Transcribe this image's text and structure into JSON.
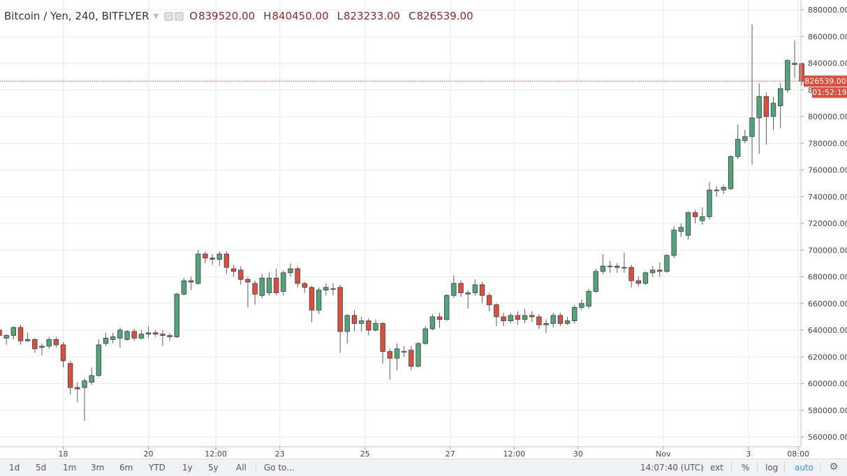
{
  "legend": {
    "symbol": "Bitcoin / Yen, 240, BITFLYER",
    "open_label": "O",
    "open": "839520.00",
    "high_label": "H",
    "high": "840450.00",
    "low_label": "L",
    "low": "823233.00",
    "close_label": "C",
    "close": "826539.00",
    "icons": [
      "eye-icon",
      "settings-icon"
    ]
  },
  "price_badge": "826539.00",
  "countdown_badge": "01:52:19",
  "colors": {
    "up": "#53a37c",
    "down": "#d9503f",
    "wick": "#5a5a5a",
    "grid": "#e8eaee",
    "price_line": "#d9503f"
  },
  "bottom_bar": {
    "timeframes": [
      "1d",
      "5d",
      "1m",
      "3m",
      "6m",
      "YTD",
      "1y",
      "5y",
      "All"
    ],
    "goto": "Go to...",
    "time": "14:07:40 (UTC)",
    "ext": "ext",
    "percent": "%",
    "log": "log",
    "auto": "auto"
  },
  "chart_data": {
    "type": "candlestick",
    "title": "Bitcoin / Yen, 240, BITFLYER",
    "ylim": [
      552000,
      885000
    ],
    "y_ticks": [
      560000,
      580000,
      600000,
      620000,
      640000,
      660000,
      680000,
      700000,
      720000,
      740000,
      760000,
      780000,
      800000,
      820000,
      840000,
      860000,
      880000
    ],
    "y_tick_labels": [
      "560000.00",
      "580000.00",
      "600000.00",
      "620000.00",
      "640000.00",
      "660000.00",
      "680000.00",
      "700000.00",
      "720000.00",
      "740000.00",
      "760000.00",
      "780000.00",
      "800000.00",
      "820000.00",
      "840000.00",
      "860000.00",
      "880000.00"
    ],
    "x_ticks": [
      {
        "label": "18",
        "bar": 9
      },
      {
        "label": "20",
        "bar": 21
      },
      {
        "label": "12:00",
        "bar": 30.5
      },
      {
        "label": "23",
        "bar": 39.5
      },
      {
        "label": "25",
        "bar": 51.5
      },
      {
        "label": "27",
        "bar": 63.5
      },
      {
        "label": "12:00",
        "bar": 72.5
      },
      {
        "label": "30",
        "bar": 81.5
      },
      {
        "label": "Nov",
        "bar": 93.5
      },
      {
        "label": "3",
        "bar": 105.5
      },
      {
        "label": "08:00",
        "bar": 112.5
      }
    ],
    "grid": true,
    "last_price": 826539,
    "candles": [
      [
        640000,
        636000,
        642000,
        633000
      ],
      [
        634000,
        636000,
        637000,
        629000
      ],
      [
        636000,
        642000,
        643000,
        633000
      ],
      [
        642000,
        632000,
        644000,
        629000
      ],
      [
        632000,
        633000,
        638000,
        631000
      ],
      [
        633000,
        626000,
        634000,
        623000
      ],
      [
        627000,
        628000,
        630000,
        621000
      ],
      [
        628000,
        633000,
        635000,
        626000
      ],
      [
        633000,
        629000,
        635000,
        627000
      ],
      [
        629000,
        617000,
        631000,
        612000
      ],
      [
        615000,
        597000,
        617000,
        592000
      ],
      [
        597000,
        596000,
        601000,
        586000
      ],
      [
        597000,
        602000,
        604000,
        572000
      ],
      [
        601000,
        606000,
        612000,
        599000
      ],
      [
        606000,
        629000,
        633000,
        605000
      ],
      [
        630000,
        634000,
        638000,
        628000
      ],
      [
        633000,
        635000,
        638000,
        630000
      ],
      [
        634000,
        640000,
        642000,
        627000
      ],
      [
        633000,
        639000,
        640000,
        632000
      ],
      [
        639000,
        634000,
        641000,
        632000
      ],
      [
        634000,
        637000,
        640000,
        633000
      ],
      [
        637000,
        638000,
        643000,
        634000
      ],
      [
        638000,
        637000,
        640000,
        635000
      ],
      [
        637000,
        636000,
        640000,
        628000
      ],
      [
        635000,
        636000,
        638000,
        632000
      ],
      [
        635000,
        667000,
        668000,
        634000
      ],
      [
        667000,
        677000,
        679000,
        666000
      ],
      [
        677000,
        676000,
        680000,
        670000
      ],
      [
        675000,
        697000,
        700000,
        674000
      ],
      [
        697000,
        694000,
        699000,
        690000
      ],
      [
        694000,
        693000,
        697000,
        689000
      ],
      [
        693000,
        697000,
        699000,
        688000
      ],
      [
        697000,
        687000,
        699000,
        682000
      ],
      [
        686000,
        684000,
        689000,
        680000
      ],
      [
        685000,
        678000,
        688000,
        674000
      ],
      [
        678000,
        676000,
        680000,
        657000
      ],
      [
        675000,
        667000,
        677000,
        659000
      ],
      [
        666000,
        679000,
        682000,
        664000
      ],
      [
        668000,
        679000,
        683000,
        666000
      ],
      [
        679000,
        668000,
        686000,
        666000
      ],
      [
        669000,
        683000,
        685000,
        666000
      ],
      [
        683000,
        686000,
        690000,
        680000
      ],
      [
        686000,
        675000,
        688000,
        672000
      ],
      [
        675000,
        672000,
        676000,
        668000
      ],
      [
        672000,
        655000,
        673000,
        646000
      ],
      [
        655000,
        670000,
        672000,
        652000
      ],
      [
        670000,
        672000,
        675000,
        666000
      ],
      [
        671000,
        671000,
        675000,
        666000
      ],
      [
        672000,
        639000,
        674000,
        623000
      ],
      [
        639000,
        651000,
        652000,
        630000
      ],
      [
        651000,
        645000,
        655000,
        639000
      ],
      [
        645000,
        647000,
        650000,
        639000
      ],
      [
        647000,
        640000,
        649000,
        636000
      ],
      [
        640000,
        645000,
        648000,
        639000
      ],
      [
        645000,
        624000,
        646000,
        615000
      ],
      [
        624000,
        619000,
        626000,
        603000
      ],
      [
        619000,
        626000,
        630000,
        610000
      ],
      [
        624000,
        624000,
        628000,
        620000
      ],
      [
        625000,
        613000,
        628000,
        610000
      ],
      [
        613000,
        630000,
        631000,
        612000
      ],
      [
        630000,
        641000,
        643000,
        629000
      ],
      [
        641000,
        650000,
        652000,
        640000
      ],
      [
        650000,
        648000,
        653000,
        642000
      ],
      [
        648000,
        666000,
        667000,
        647000
      ],
      [
        666000,
        675000,
        681000,
        664000
      ],
      [
        675000,
        668000,
        677000,
        665000
      ],
      [
        667000,
        668000,
        670000,
        656000
      ],
      [
        668000,
        674000,
        678000,
        666000
      ],
      [
        674000,
        666000,
        676000,
        660000
      ],
      [
        666000,
        659000,
        668000,
        654000
      ],
      [
        659000,
        650000,
        660000,
        643000
      ],
      [
        650000,
        647000,
        653000,
        643000
      ],
      [
        647000,
        651000,
        653000,
        645000
      ],
      [
        651000,
        648000,
        654000,
        644000
      ],
      [
        648000,
        651000,
        656000,
        645000
      ],
      [
        651000,
        650000,
        654000,
        646000
      ],
      [
        650000,
        644000,
        652000,
        641000
      ],
      [
        644000,
        645000,
        648000,
        638000
      ],
      [
        645000,
        651000,
        653000,
        642000
      ],
      [
        651000,
        645000,
        653000,
        643000
      ],
      [
        645000,
        647000,
        650000,
        644000
      ],
      [
        647000,
        657000,
        659000,
        645000
      ],
      [
        657000,
        660000,
        663000,
        655000
      ],
      [
        658000,
        669000,
        671000,
        656000
      ],
      [
        669000,
        684000,
        686000,
        668000
      ],
      [
        684000,
        688000,
        697000,
        682000
      ],
      [
        688000,
        688000,
        692000,
        683000
      ],
      [
        688000,
        687000,
        690000,
        683000
      ],
      [
        687000,
        687000,
        698000,
        683000
      ],
      [
        687000,
        677000,
        689000,
        672000
      ],
      [
        677000,
        675000,
        680000,
        673000
      ],
      [
        675000,
        683000,
        684000,
        674000
      ],
      [
        683000,
        685000,
        688000,
        680000
      ],
      [
        685000,
        684000,
        691000,
        680000
      ],
      [
        684000,
        696000,
        697000,
        683000
      ],
      [
        696000,
        715000,
        718000,
        694000
      ],
      [
        714000,
        717000,
        720000,
        710000
      ],
      [
        711000,
        728000,
        729000,
        708000
      ],
      [
        728000,
        725000,
        730000,
        720000
      ],
      [
        722000,
        725000,
        732000,
        719000
      ],
      [
        725000,
        745000,
        751000,
        723000
      ],
      [
        745000,
        745000,
        748000,
        740000
      ],
      [
        745000,
        747000,
        749000,
        742000
      ],
      [
        746000,
        770000,
        771000,
        745000
      ],
      [
        770000,
        783000,
        794000,
        768000
      ],
      [
        782000,
        785000,
        790000,
        780000
      ],
      [
        785000,
        799000,
        869000,
        764000
      ],
      [
        799000,
        815000,
        825000,
        772000
      ],
      [
        815000,
        800000,
        818000,
        779000
      ],
      [
        800000,
        810000,
        815000,
        790000
      ],
      [
        808000,
        821000,
        825000,
        791000
      ],
      [
        820000,
        842000,
        843000,
        818000
      ],
      [
        839000,
        840000,
        857000,
        829000
      ],
      [
        839520,
        826539,
        840450,
        823233
      ]
    ]
  }
}
